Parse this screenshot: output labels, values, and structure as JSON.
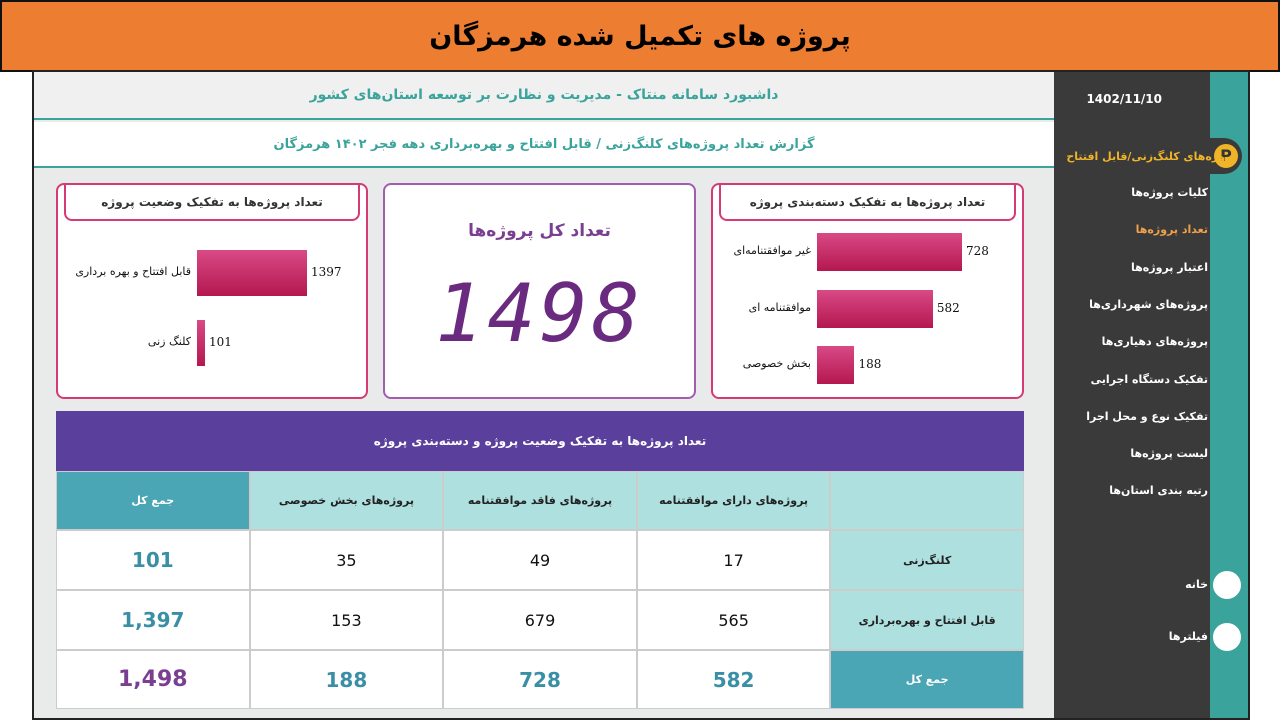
{
  "banner": {
    "title": "پروژه های تکمیل شده هرمزگان"
  },
  "header": {
    "title": "داشبورد سامانه منتاک - مدیریت و نظارت بر توسعه استان‌های کشور",
    "subtitle": "گزارش تعداد پروژه‌های کلنگ‌زنی / قابل افتتاح و بهره‌برداری دهه فجر ۱۴۰۲ هرمزگان"
  },
  "sidebar": {
    "date": "1402/11/10",
    "active": "پروژه‌های کلنگ‌زنی/قابل افتتاح",
    "items": [
      "کلیات پروژه‌ها",
      "تعداد پروژه‌ها",
      "اعتبار پروژه‌ها",
      "پروژه‌های شهرداری‌ها",
      "پروژه‌های دهیاری‌ها",
      "تفکیک دستگاه اجرایی",
      "تفکیک نوع و محل اجرا",
      "لیست پروژه‌ها",
      "رتبه بندی استان‌ها"
    ],
    "selected": 1,
    "bottom": [
      "خانه",
      "فیلترها"
    ]
  },
  "status_chart": {
    "type": "bar",
    "title": "تعداد پروژه‌ها به تفکیک وضعیت پروژه",
    "categories": [
      "قابل افتتاح و بهره برداری",
      "کلنگ زنی"
    ],
    "values": [
      1397,
      101
    ]
  },
  "total": {
    "title": "تعداد کل پروژه‌ها",
    "value": 1498
  },
  "category_chart": {
    "type": "bar",
    "title": "تعداد پروژه‌ها به تفکیک دسته‌بندی پروژه",
    "categories": [
      "غیر موافقتنامه‌ای",
      "موافقتنامه ای",
      "بخش خصوصی"
    ],
    "values": [
      728,
      582,
      188
    ]
  },
  "table": {
    "title": "تعداد پروژه‌ها به تفکیک وضعیت پروژه و دسته‌بندی پروژه",
    "columns": [
      "پروژه‌های دارای موافقتنامه",
      "پروژه‌های فاقد موافقتنامه",
      "پروژه‌های بخش خصوصی",
      "جمع کل"
    ],
    "rows": [
      [
        "کلنگ‌زنی",
        "17",
        "49",
        "35",
        "101"
      ],
      [
        "قابل افتتاح و بهره‌برداری",
        "565",
        "679",
        "153",
        "1,397"
      ],
      [
        "جمع کل",
        "582",
        "728",
        "188",
        "1,498"
      ]
    ]
  }
}
